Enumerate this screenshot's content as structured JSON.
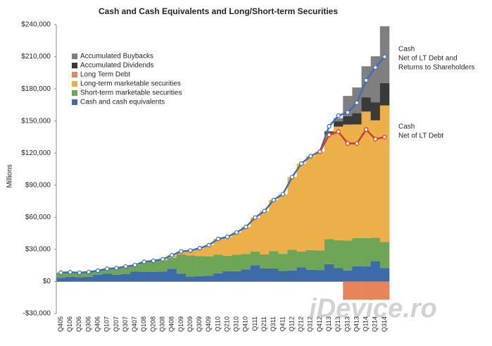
{
  "chart_data": {
    "type": "stacked-bar-line",
    "title": "Cash and Cash Equivalents and Long/Short-term Securities",
    "y_label": "Millions",
    "watermark": "iDevice.ro",
    "categories": [
      "Q405",
      "Q106",
      "Q206",
      "Q306",
      "Q406",
      "Q107",
      "Q207",
      "Q307",
      "Q407",
      "Q108",
      "Q208",
      "Q308",
      "Q408",
      "Q109",
      "Q209",
      "Q309",
      "Q409",
      "Q110",
      "Q210",
      "Q310",
      "Q410",
      "Q111",
      "Q211",
      "Q311",
      "Q411",
      "Q112",
      "Q212",
      "Q312",
      "Q412",
      "Q113",
      "Q213",
      "Q313",
      "Q413",
      "Q114",
      "Q214",
      "Q314"
    ],
    "ylim": [
      -30000,
      240000
    ],
    "yticks": [
      {
        "value": -30000,
        "label": "-$30,000"
      },
      {
        "value": 0,
        "label": "$0"
      },
      {
        "value": 30000,
        "label": "$30,000"
      },
      {
        "value": 60000,
        "label": "$60,000"
      },
      {
        "value": 90000,
        "label": "$90,000"
      },
      {
        "value": 120000,
        "label": "$120,000"
      },
      {
        "value": 150000,
        "label": "$150,000"
      },
      {
        "value": 180000,
        "label": "$180,000"
      },
      {
        "value": 210000,
        "label": "$210,000"
      },
      {
        "value": 240000,
        "label": "$240,000"
      }
    ],
    "series": [
      {
        "name": "Accumulated Buybacks",
        "color": "#7f7f7f",
        "values": [
          0,
          0,
          0,
          0,
          0,
          0,
          0,
          0,
          0,
          0,
          0,
          0,
          0,
          0,
          0,
          0,
          0,
          0,
          0,
          0,
          0,
          0,
          0,
          0,
          0,
          0,
          0,
          0,
          0,
          1000,
          3000,
          19000,
          24000,
          29000,
          43000,
          53000
        ]
      },
      {
        "name": "Accumulated Dividends",
        "color": "#3a3a3a",
        "values": [
          0,
          0,
          0,
          0,
          0,
          0,
          0,
          0,
          0,
          0,
          0,
          0,
          0,
          0,
          0,
          0,
          0,
          0,
          0,
          0,
          0,
          0,
          0,
          0,
          0,
          0,
          0,
          0,
          0,
          2500,
          5000,
          7800,
          10500,
          13300,
          16900,
          21000
        ]
      },
      {
        "name": "Long Term Debt",
        "color": "#e8845a",
        "values": [
          0,
          0,
          0,
          0,
          0,
          0,
          0,
          0,
          0,
          0,
          0,
          0,
          0,
          0,
          0,
          0,
          0,
          0,
          0,
          0,
          0,
          0,
          0,
          0,
          0,
          0,
          0,
          0,
          0,
          0,
          0,
          -17000,
          -17000,
          -17000,
          -17000,
          -17000
        ]
      },
      {
        "name": "Long-term marketable securities",
        "color": "#ebb04a",
        "values": [
          0,
          0,
          0,
          0,
          0,
          0,
          0,
          0,
          0,
          0,
          0,
          1200,
          2400,
          2700,
          4600,
          7300,
          10500,
          14600,
          17600,
          20700,
          25300,
          31600,
          40500,
          47700,
          55700,
          68000,
          82200,
          87800,
          92200,
          97400,
          106100,
          108300,
          106200,
          118300,
          109800,
          127500
        ]
      },
      {
        "name": "Short-term marketable securities",
        "color": "#6fa556",
        "values": [
          4800,
          4300,
          4300,
          4600,
          3700,
          4700,
          6200,
          6900,
          6000,
          9300,
          10300,
          10200,
          10200,
          18200,
          19800,
          18800,
          18200,
          17600,
          14400,
          15500,
          14400,
          12900,
          13100,
          16400,
          16100,
          19300,
          14900,
          18400,
          18400,
          23500,
          26100,
          28000,
          26300,
          26400,
          21800,
          24500
        ]
      },
      {
        "name": "Cash and cash equivalents",
        "color": "#3d6aa8",
        "values": [
          3500,
          4400,
          3900,
          4300,
          6400,
          7200,
          6300,
          7100,
          9400,
          9100,
          9100,
          9400,
          11900,
          7200,
          4500,
          5000,
          5300,
          7600,
          9700,
          9600,
          11300,
          15200,
          12200,
          12100,
          9800,
          10300,
          13100,
          11000,
          10700,
          16200,
          12500,
          10300,
          14300,
          14100,
          19000,
          12500
        ]
      }
    ],
    "lines": [
      {
        "label": [
          "Cash",
          "Net of LT Debt and",
          "Returns to Shareholders"
        ],
        "color": "#3c6fb5",
        "values": [
          8300,
          8700,
          8200,
          8900,
          10100,
          11900,
          12500,
          14000,
          15400,
          18400,
          19400,
          20800,
          24500,
          28100,
          28900,
          31100,
          34000,
          39800,
          41700,
          45800,
          51000,
          59700,
          65800,
          76200,
          81600,
          97600,
          110200,
          117200,
          121300,
          145000,
          155000,
          158000,
          167000,
          188000,
          200000,
          210000
        ]
      },
      {
        "label": [
          "Cash",
          "Net of LT Debt"
        ],
        "color": "#d03a2f",
        "values": [
          null,
          null,
          null,
          null,
          null,
          null,
          null,
          null,
          null,
          null,
          null,
          null,
          null,
          null,
          null,
          null,
          null,
          null,
          null,
          null,
          null,
          null,
          null,
          null,
          null,
          null,
          null,
          null,
          121300,
          137000,
          140000,
          129000,
          129000,
          142000,
          133000,
          135000
        ]
      }
    ]
  }
}
